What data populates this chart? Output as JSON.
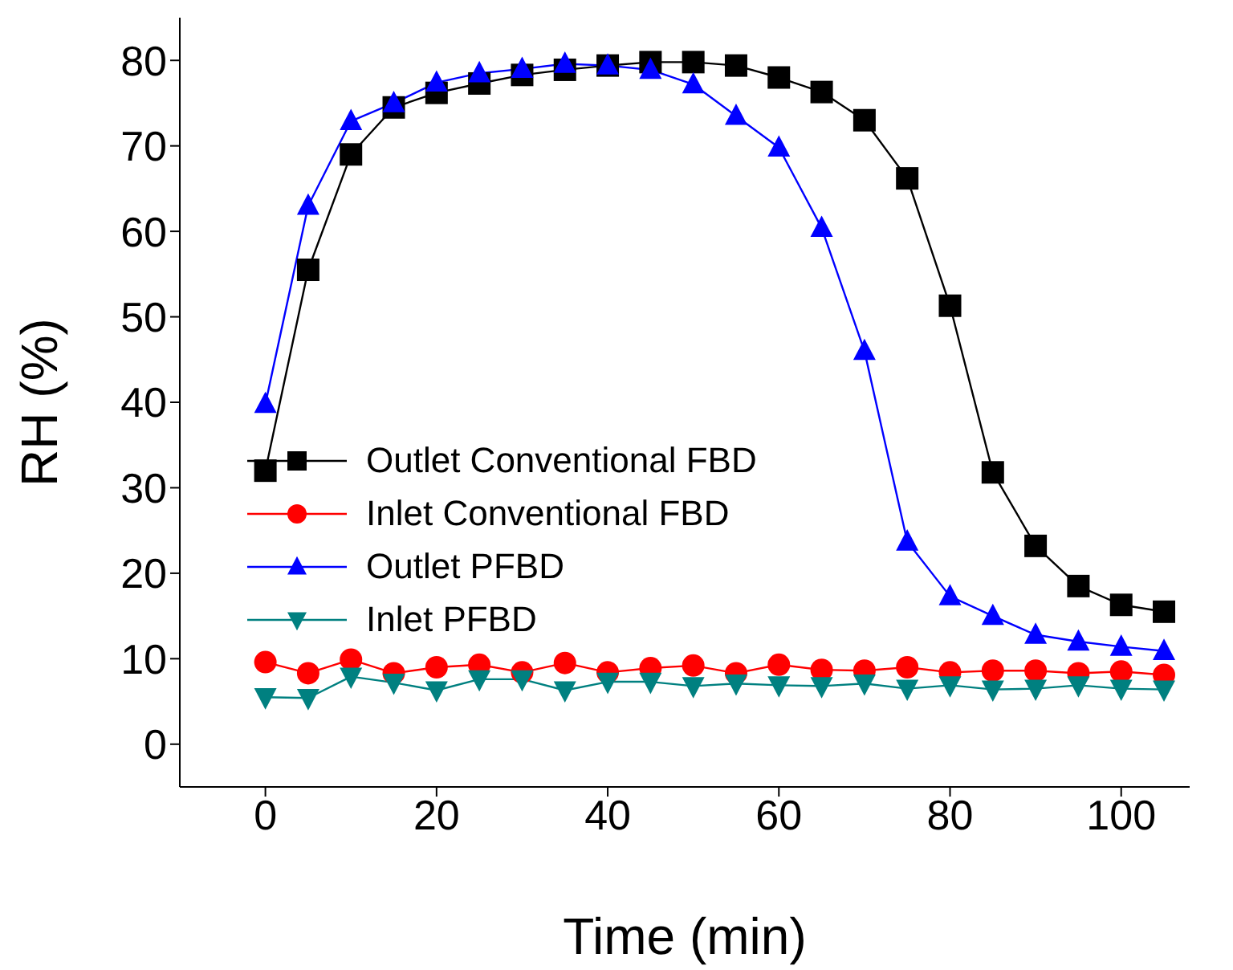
{
  "chart_data": {
    "type": "line",
    "xlabel": "Time (min)",
    "ylabel": "RH (%)",
    "x": [
      0,
      5,
      10,
      15,
      20,
      25,
      30,
      35,
      40,
      45,
      50,
      55,
      60,
      65,
      70,
      75,
      80,
      85,
      90,
      95,
      100,
      105
    ],
    "series": [
      {
        "name": "Outlet Conventional FBD",
        "color": "#000000",
        "marker": "square",
        "values": [
          32,
          55.5,
          69,
          74.5,
          76.2,
          77.3,
          78.3,
          78.9,
          79.4,
          79.8,
          79.8,
          79.4,
          78,
          76.3,
          73,
          66.2,
          51.3,
          31.8,
          23.2,
          18.5,
          16.3,
          15.5
        ]
      },
      {
        "name": "Inlet Conventional FBD",
        "color": "#ff0000",
        "marker": "circle",
        "values": [
          9.6,
          8.3,
          9.9,
          8.3,
          9,
          9.3,
          8.4,
          9.5,
          8.4,
          8.9,
          9.2,
          8.3,
          9.3,
          8.7,
          8.6,
          9,
          8.4,
          8.6,
          8.6,
          8.3,
          8.5,
          8.1
        ]
      },
      {
        "name": "Outlet PFBD",
        "color": "#0000ff",
        "marker": "triangle",
        "values": [
          39.8,
          63,
          72.9,
          75,
          77.4,
          78.5,
          79,
          79.6,
          79.4,
          78.9,
          77.2,
          73.5,
          69.8,
          60.4,
          46,
          23.7,
          17.3,
          15,
          12.8,
          12,
          11.4,
          10.9
        ]
      },
      {
        "name": "Inlet PFBD",
        "color": "#008080",
        "marker": "triangle-down",
        "values": [
          5.5,
          5.4,
          7.9,
          7.2,
          6.3,
          7.6,
          7.6,
          6.3,
          7.3,
          7.3,
          6.8,
          7.1,
          6.9,
          6.8,
          7.1,
          6.5,
          6.9,
          6.4,
          6.5,
          6.9,
          6.5,
          6.4
        ]
      }
    ],
    "xlim": [
      -10,
      108
    ],
    "xticks": [
      0,
      20,
      40,
      60,
      80,
      100
    ],
    "ylim": [
      -5,
      85
    ],
    "yticks": [
      0,
      10,
      20,
      30,
      40,
      50,
      60,
      70,
      80
    ],
    "grid": false,
    "legend": "left",
    "line_style": "solid"
  }
}
